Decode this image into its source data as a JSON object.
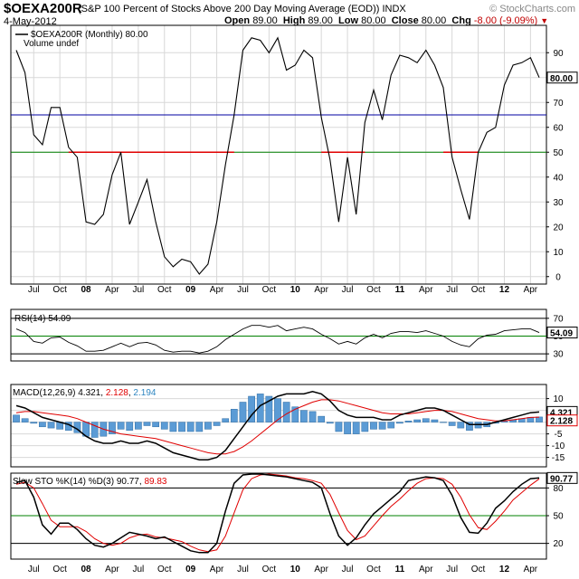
{
  "header": {
    "symbol": "$OEXA200R",
    "description": "(S&P 100 Percent of Stocks Above 200 Day Moving Average (EOD)) INDX",
    "date": "4-May-2012",
    "source": "© StockCharts.com",
    "open_label": "Open",
    "open": "89.00",
    "high_label": "High",
    "high": "89.00",
    "low_label": "Low",
    "low": "80.00",
    "close_label": "Close",
    "close": "80.00",
    "chg_label": "Chg",
    "chg": "-8.00 (-9.09%)"
  },
  "chart_data": [
    {
      "type": "line",
      "legend": "$OEXA200R (Monthly) 80.00",
      "legend_sub": "Volume undef",
      "last_label": "80.00",
      "x": [
        "2007-05",
        "2007-06",
        "2007-07",
        "2007-08",
        "2007-09",
        "2007-10",
        "2007-11",
        "2007-12",
        "2008-01",
        "2008-02",
        "2008-03",
        "2008-04",
        "2008-05",
        "2008-06",
        "2008-07",
        "2008-08",
        "2008-09",
        "2008-10",
        "2008-11",
        "2008-12",
        "2009-01",
        "2009-02",
        "2009-03",
        "2009-04",
        "2009-05",
        "2009-06",
        "2009-07",
        "2009-08",
        "2009-09",
        "2009-10",
        "2009-11",
        "2009-12",
        "2010-01",
        "2010-02",
        "2010-03",
        "2010-04",
        "2010-05",
        "2010-06",
        "2010-07",
        "2010-08",
        "2010-09",
        "2010-10",
        "2010-11",
        "2010-12",
        "2011-01",
        "2011-02",
        "2011-03",
        "2011-04",
        "2011-05",
        "2011-06",
        "2011-07",
        "2011-08",
        "2011-09",
        "2011-10",
        "2011-11",
        "2011-12",
        "2012-01",
        "2012-02",
        "2012-03",
        "2012-04",
        "2012-05"
      ],
      "values": [
        91,
        82,
        57,
        53,
        68,
        68,
        52,
        48,
        22,
        21,
        25,
        41,
        50,
        21,
        30,
        39,
        22,
        8,
        4,
        7,
        6,
        1,
        5,
        22,
        45,
        65,
        91,
        96,
        95,
        90,
        96,
        83,
        85,
        91,
        88,
        64,
        47,
        22,
        48,
        25,
        62,
        75,
        63,
        81,
        89,
        88,
        86,
        91,
        85,
        76,
        48,
        35,
        23,
        50,
        58,
        60,
        77,
        85,
        86,
        88,
        80
      ],
      "xticks": [
        "Jul",
        "Oct",
        "08",
        "Apr",
        "Jul",
        "Oct",
        "09",
        "Apr",
        "Jul",
        "Oct",
        "10",
        "Apr",
        "Jul",
        "Oct",
        "11",
        "Apr",
        "Jul",
        "Oct",
        "12",
        "Apr"
      ],
      "ylim": [
        0,
        100
      ],
      "yticks": [
        0,
        10,
        20,
        30,
        40,
        50,
        60,
        70,
        80,
        90
      ],
      "reference_lines": [
        {
          "value": 65,
          "color": "#0000a0"
        },
        {
          "value": 50,
          "color": "#008000"
        }
      ],
      "below_50_color": "#e00000",
      "grid": true
    },
    {
      "type": "line",
      "legend": "RSI(14) 54.09",
      "last_label": "54.09",
      "yticks": [
        30,
        50,
        70
      ],
      "ylim": [
        30,
        70
      ],
      "reference_lines": [
        {
          "value": 70,
          "color": "#000000"
        },
        {
          "value": 50,
          "color": "#008000"
        },
        {
          "value": 30,
          "color": "#000000"
        }
      ],
      "values": [
        58,
        54,
        44,
        42,
        48,
        49,
        43,
        39,
        33,
        33,
        34,
        38,
        42,
        38,
        42,
        43,
        40,
        34,
        32,
        33,
        33,
        31,
        33,
        38,
        46,
        52,
        58,
        62,
        62,
        60,
        62,
        56,
        58,
        60,
        58,
        52,
        47,
        41,
        44,
        41,
        48,
        52,
        48,
        53,
        55,
        55,
        54,
        56,
        53,
        50,
        44,
        40,
        38,
        47,
        51,
        52,
        56,
        57,
        58,
        58,
        54
      ]
    },
    {
      "type": "bar",
      "legend_prefix": "MACD(12,26,9)",
      "macd_value": "4.321",
      "signal_value": "2.128",
      "hist_value": "2.194",
      "macd_color": "#000000",
      "signal_color": "#e00000",
      "hist_color": "#5b9bd5",
      "yticks": [
        -15,
        -10,
        -5,
        0,
        5,
        10
      ],
      "ylim": [
        -17,
        16
      ],
      "macd": [
        7,
        6,
        4,
        2,
        1,
        0,
        -1,
        -3,
        -6,
        -8,
        -9,
        -9,
        -8,
        -9,
        -9,
        -8,
        -9,
        -11,
        -13,
        -14,
        -15,
        -16,
        -16,
        -15,
        -12,
        -7,
        -2,
        3,
        7,
        9,
        11,
        12,
        12,
        12,
        13,
        12,
        9,
        5,
        3,
        2,
        2,
        2,
        1,
        1,
        3,
        4,
        5,
        6,
        6,
        5,
        3,
        1,
        -1,
        -1,
        -1,
        0,
        1,
        2,
        3,
        4,
        4.321
      ],
      "signal": [
        4,
        4.5,
        4.5,
        4,
        3.5,
        3,
        2.5,
        1.5,
        0,
        -1.5,
        -3,
        -4,
        -5,
        -5.5,
        -6,
        -6.5,
        -7,
        -8,
        -9,
        -10,
        -11,
        -12,
        -13,
        -13.5,
        -13.5,
        -12.5,
        -10.5,
        -8,
        -5,
        -2,
        1,
        3.5,
        5.5,
        7,
        8.5,
        9.5,
        9.5,
        9,
        8,
        7,
        6,
        5,
        4,
        3.5,
        3.5,
        3.5,
        4,
        4.5,
        5,
        5,
        4.5,
        3.5,
        2.5,
        1.5,
        1,
        0.5,
        0.5,
        1,
        1.5,
        2,
        2.128
      ],
      "hist": [
        3,
        1.5,
        -0.5,
        -2,
        -2.5,
        -3,
        -3.5,
        -4.5,
        -6,
        -6.5,
        -6,
        -5,
        -3,
        -3.5,
        -3,
        -1.5,
        -2,
        -3,
        -4,
        -4,
        -4,
        -4,
        -3,
        -1.5,
        1.5,
        5.5,
        8.5,
        11,
        12,
        11,
        10,
        8.5,
        6.5,
        5,
        4.5,
        2.5,
        -0.5,
        -4,
        -5,
        -5,
        -4,
        -3,
        -3,
        -2.5,
        -0.5,
        0.5,
        1,
        1.5,
        1,
        0,
        -1.5,
        -2.5,
        -3.5,
        -2.5,
        -2,
        -0.5,
        0.5,
        1,
        1.5,
        2,
        2.194
      ]
    },
    {
      "type": "line",
      "legend_prefix": "Slow STO %K(14) %D(3)",
      "k_value": "90.77",
      "d_value": "89.83",
      "k_color": "#000000",
      "d_color": "#e00000",
      "yticks": [
        20,
        50,
        80
      ],
      "ylim": [
        0,
        100
      ],
      "reference_lines": [
        {
          "value": 80,
          "color": "#000000"
        },
        {
          "value": 50,
          "color": "#008000"
        },
        {
          "value": 20,
          "color": "#000000"
        }
      ],
      "k": [
        86,
        88,
        70,
        40,
        30,
        42,
        42,
        35,
        25,
        18,
        16,
        20,
        26,
        32,
        30,
        28,
        25,
        27,
        22,
        17,
        12,
        10,
        10,
        20,
        55,
        85,
        94,
        95,
        95,
        94,
        93,
        92,
        90,
        88,
        86,
        80,
        52,
        28,
        18,
        26,
        40,
        52,
        60,
        68,
        76,
        88,
        90,
        92,
        91,
        88,
        72,
        48,
        32,
        31,
        42,
        58,
        66,
        76,
        84,
        90,
        90.77
      ],
      "d": [
        84,
        86,
        80,
        63,
        45,
        38,
        38,
        38,
        33,
        25,
        20,
        18,
        20,
        26,
        29,
        30,
        27,
        26,
        24,
        22,
        17,
        13,
        11,
        13,
        28,
        53,
        78,
        90,
        94,
        95,
        94,
        93,
        91,
        90,
        88,
        85,
        73,
        53,
        34,
        24,
        28,
        39,
        50,
        60,
        68,
        77,
        85,
        90,
        91,
        90,
        84,
        70,
        51,
        37,
        35,
        44,
        55,
        67,
        75,
        83,
        89.83
      ]
    }
  ]
}
